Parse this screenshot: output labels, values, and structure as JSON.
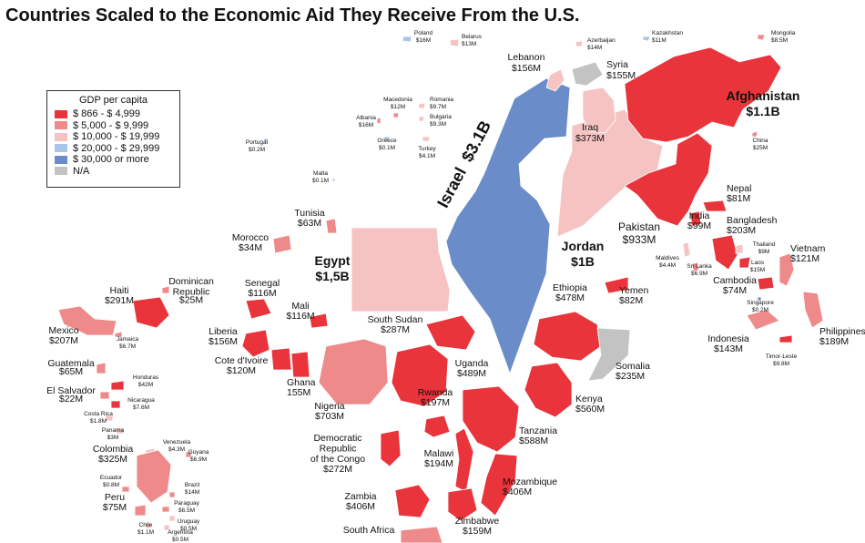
{
  "title": "Countries Scaled to the Economic Aid They Receive From the U.S.",
  "legend": {
    "title": "GDP per capita",
    "items": [
      {
        "label": "$ 866   -  $ 4,999",
        "color": "#e8343a"
      },
      {
        "label": "$ 5,000   -  $ 9,999",
        "color": "#ef8a8b"
      },
      {
        "label": "$ 10,000  -  $ 19,999",
        "color": "#f6c3c3"
      },
      {
        "label": "$ 20,000  -  $ 29,999",
        "color": "#a9c6e6"
      },
      {
        "label": "$ 30,000 or more",
        "color": "#6a8cc8"
      },
      {
        "label": "N/A",
        "color": "#c3c3c3"
      }
    ]
  },
  "countries": [
    {
      "name": "Israel",
      "aid": "$3.1B",
      "tier": 4,
      "emphasis": "xl"
    },
    {
      "name": "Egypt",
      "aid": "$1,5B",
      "tier": 2,
      "emphasis": "lg"
    },
    {
      "name": "Jordan",
      "aid": "$1B",
      "tier": 2,
      "emphasis": "lg"
    },
    {
      "name": "Afghanistan",
      "aid": "$1.1B",
      "tier": 0,
      "emphasis": "lg"
    },
    {
      "name": "Pakistan",
      "aid": "$933M",
      "tier": 0,
      "emphasis": "md"
    },
    {
      "name": "Iraq",
      "aid": "$373M",
      "tier": 2
    },
    {
      "name": "Syria",
      "aid": "$155M",
      "tier": 5
    },
    {
      "name": "Lebanon",
      "aid": "$156M",
      "tier": 2
    },
    {
      "name": "Poland",
      "aid": "$16M",
      "tier": 3
    },
    {
      "name": "Belarus",
      "aid": "$13M",
      "tier": 2
    },
    {
      "name": "Azerbaijan",
      "aid": "$14M",
      "tier": 2
    },
    {
      "name": "Kazakhstan",
      "aid": "$11M",
      "tier": 3
    },
    {
      "name": "Mongolia",
      "aid": "$8.5M",
      "tier": 1
    },
    {
      "name": "China",
      "aid": "$25M",
      "tier": 1
    },
    {
      "name": "Macedonia",
      "aid": "$12M",
      "tier": 1
    },
    {
      "name": "Romania",
      "aid": "$9.7M",
      "tier": 2
    },
    {
      "name": "Bulgaria",
      "aid": "$9.3M",
      "tier": 2
    },
    {
      "name": "Albania",
      "aid": "$16M",
      "tier": 1
    },
    {
      "name": "Greece",
      "aid": "$0.1M",
      "tier": 3
    },
    {
      "name": "Turkey",
      "aid": "$4.1M",
      "tier": 2
    },
    {
      "name": "Portugal",
      "aid": "$0.2M",
      "tier": 3
    },
    {
      "name": "Malta",
      "aid": "$0.1M",
      "tier": 3
    },
    {
      "name": "Tunisia",
      "aid": "$63M",
      "tier": 1
    },
    {
      "name": "Morocco",
      "aid": "$34M",
      "tier": 1
    },
    {
      "name": "Nepal",
      "aid": "$81M",
      "tier": 0
    },
    {
      "name": "India",
      "aid": "$99M",
      "tier": 0
    },
    {
      "name": "Bangladesh",
      "aid": "$203M",
      "tier": 0
    },
    {
      "name": "Thailand",
      "aid": "$9M",
      "tier": 2
    },
    {
      "name": "Laos",
      "aid": "$15M",
      "tier": 0
    },
    {
      "name": "Vietnam",
      "aid": "$121M",
      "tier": 1
    },
    {
      "name": "Cambodia",
      "aid": "$74M",
      "tier": 0
    },
    {
      "name": "Maldives",
      "aid": "$4.4M",
      "tier": 2
    },
    {
      "name": "Sri Lanka",
      "aid": "$6.9M",
      "tier": 1
    },
    {
      "name": "Singapore",
      "aid": "$0.2M",
      "tier": 4
    },
    {
      "name": "Indonesia",
      "aid": "$143M",
      "tier": 1
    },
    {
      "name": "Philippines",
      "aid": "$189M",
      "tier": 1
    },
    {
      "name": "Timor-Leste",
      "aid": "$9.8M",
      "tier": 0
    },
    {
      "name": "Yemen",
      "aid": "$82M",
      "tier": 0
    },
    {
      "name": "Ethiopia",
      "aid": "$478M",
      "tier": 0
    },
    {
      "name": "Somalia",
      "aid": "$235M",
      "tier": 5
    },
    {
      "name": "Kenya",
      "aid": "$560M",
      "tier": 0
    },
    {
      "name": "Uganda",
      "aid": "$489M",
      "tier": 0
    },
    {
      "name": "South Sudan",
      "aid": "$287M",
      "tier": 0
    },
    {
      "name": "Rwanda",
      "aid": "$197M",
      "tier": 0
    },
    {
      "name": "Tanzania",
      "aid": "$588M",
      "tier": 0
    },
    {
      "name": "Malawi",
      "aid": "$194M",
      "tier": 0
    },
    {
      "name": "Mozambique",
      "aid": "$406M",
      "tier": 0
    },
    {
      "name": "Zambia",
      "aid": "$406M",
      "tier": 0
    },
    {
      "name": "Zimbabwe",
      "aid": "$159M",
      "tier": 0
    },
    {
      "name": "South Africa",
      "aid": "",
      "tier": 1
    },
    {
      "name": "Democratic Republic of the Congo",
      "aid": "$272M",
      "tier": 0
    },
    {
      "name": "Nigeria",
      "aid": "$703M",
      "tier": 1
    },
    {
      "name": "Ghana",
      "aid": "155M",
      "tier": 0
    },
    {
      "name": "Cote d'Ivoire",
      "aid": "$120M",
      "tier": 0
    },
    {
      "name": "Liberia",
      "aid": "$156M",
      "tier": 0
    },
    {
      "name": "Mali",
      "aid": "$116M",
      "tier": 0
    },
    {
      "name": "Senegal",
      "aid": "$116M",
      "tier": 0
    },
    {
      "name": "Haiti",
      "aid": "$291M",
      "tier": 0
    },
    {
      "name": "Dominican Republic",
      "aid": "$25M",
      "tier": 1
    },
    {
      "name": "Jamaica",
      "aid": "$6.7M",
      "tier": 1
    },
    {
      "name": "Mexico",
      "aid": "$207M",
      "tier": 1
    },
    {
      "name": "Guatemala",
      "aid": "$65M",
      "tier": 1
    },
    {
      "name": "Honduras",
      "aid": "$42M",
      "tier": 0
    },
    {
      "name": "El Salvador",
      "aid": "$22M",
      "tier": 1
    },
    {
      "name": "Nicaragua",
      "aid": "$7.6M",
      "tier": 0
    },
    {
      "name": "Costa Rica",
      "aid": "$1.8M",
      "tier": 2
    },
    {
      "name": "Panama",
      "aid": "$3M",
      "tier": 2
    },
    {
      "name": "Venezuela",
      "aid": "$4.3M",
      "tier": 2
    },
    {
      "name": "Guyana",
      "aid": "$6.9M",
      "tier": 1
    },
    {
      "name": "Colombia",
      "aid": "$325M",
      "tier": 1
    },
    {
      "name": "Ecuador",
      "aid": "$0.8M",
      "tier": 1
    },
    {
      "name": "Brazil",
      "aid": "$14M",
      "tier": 1
    },
    {
      "name": "Peru",
      "aid": "$75M",
      "tier": 1
    },
    {
      "name": "Paraguay",
      "aid": "$6.5M",
      "tier": 1
    },
    {
      "name": "Uruguay",
      "aid": "$0.5M",
      "tier": 2
    },
    {
      "name": "Chile",
      "aid": "$1.1M",
      "tier": 2
    },
    {
      "name": "Argentina",
      "aid": "$0.5M",
      "tier": 2
    }
  ]
}
